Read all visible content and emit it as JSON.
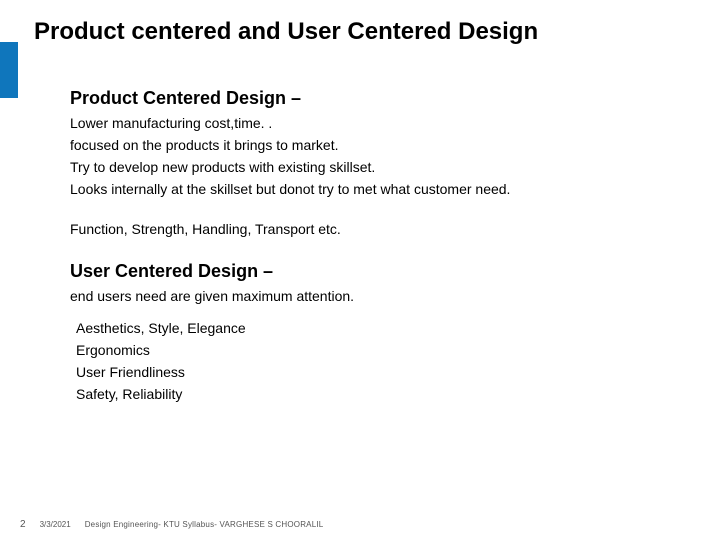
{
  "accent_color": "#0f76bc",
  "title": {
    "text": "Product centered and User Centered Design",
    "fontsize": 24
  },
  "section1": {
    "heading": "Product Centered Design –",
    "heading_fontsize": 18,
    "lines": [
      "Lower manufacturing cost,time. .",
      " focused on the products it brings to market.",
      "Try to develop new products with existing skillset.",
      "Looks internally at the skillset but donot try to met what customer need."
    ],
    "line_fontsize": 14,
    "summary": "Function, Strength, Handling, Transport etc."
  },
  "section2": {
    "heading": "User Centered Design –",
    "heading_fontsize": 18,
    "lead": "end users need are given maximum attention.",
    "lead_fontsize": 14,
    "bullets": [
      "Aesthetics, Style, Elegance",
      "Ergonomics",
      "User Friendliness",
      "Safety, Reliability"
    ],
    "bullet_fontsize": 14
  },
  "footer": {
    "page": "2",
    "date": "3/3/2021",
    "text": "Design Engineering- KTU Syllabus- VARGHESE S CHOORALIL"
  }
}
